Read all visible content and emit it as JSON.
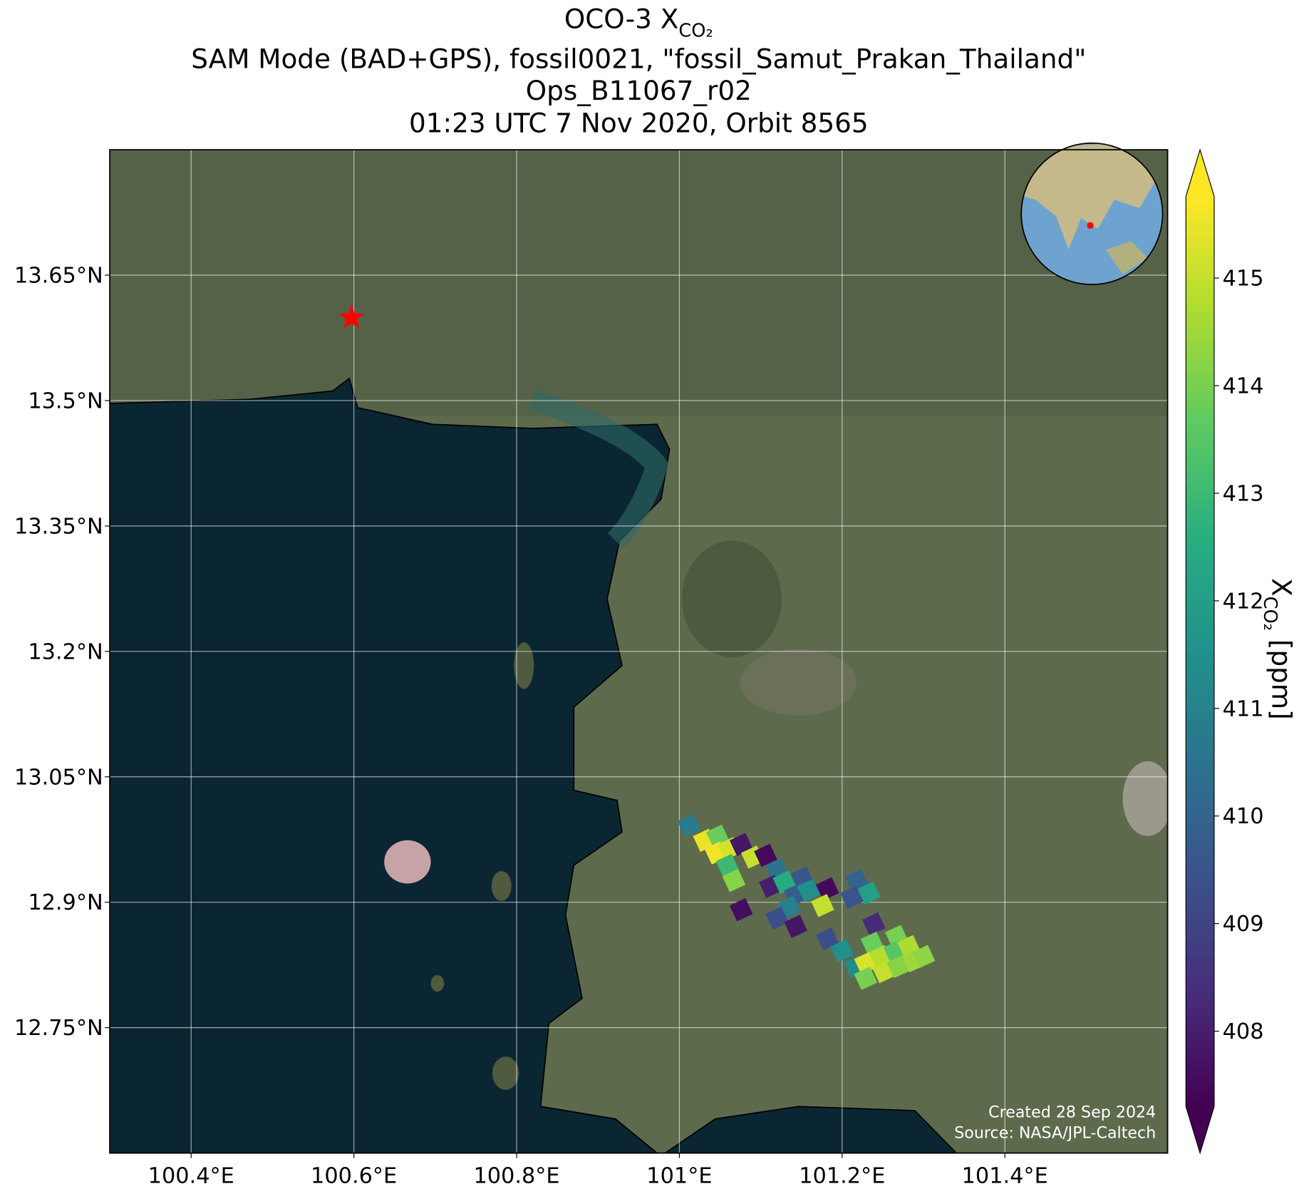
{
  "chart_data": {
    "type": "map",
    "title": {
      "text": "OCO-3 X",
      "subscript": "CO₂"
    },
    "subtitle": [
      "SAM Mode (BAD+GPS), fossil0021, \"fossil_Samut_Prakan_Thailand\"",
      "Ops_B11067_r02",
      "01:23 UTC 7 Nov 2020, Orbit 8565"
    ],
    "xlim": [
      100.3,
      101.6
    ],
    "ylim": [
      12.6,
      13.8
    ],
    "xticks": [
      {
        "value": 100.4,
        "label": "100.4°E"
      },
      {
        "value": 100.6,
        "label": "100.6°E"
      },
      {
        "value": 100.8,
        "label": "100.8°E"
      },
      {
        "value": 101,
        "label": "101°E"
      },
      {
        "value": 101.2,
        "label": "101.2°E"
      },
      {
        "value": 101.4,
        "label": "101.4°E"
      }
    ],
    "yticks": [
      {
        "value": 13.65,
        "label": "13.65°N"
      },
      {
        "value": 13.5,
        "label": "13.5°N"
      },
      {
        "value": 13.35,
        "label": "13.35°N"
      },
      {
        "value": 13.2,
        "label": "13.2°N"
      },
      {
        "value": 13.05,
        "label": "13.05°N"
      },
      {
        "value": 12.9,
        "label": "12.9°N"
      },
      {
        "value": 12.75,
        "label": "12.75°N"
      }
    ],
    "grid": true,
    "target": {
      "lon": 100.597,
      "lat": 13.599,
      "color": "#ff0000"
    },
    "lon": [
      101.012,
      101.031,
      101.047,
      101.045,
      101.061,
      101.076,
      101.059,
      101.09,
      101.106,
      101.067,
      101.12,
      101.112,
      101.129,
      101.151,
      101.143,
      101.159,
      101.182,
      101.176,
      101.135,
      101.12,
      101.076,
      101.143,
      101.218,
      101.233,
      101.212,
      101.239,
      101.182,
      101.2,
      101.237,
      101.267,
      101.216,
      101.229,
      101.247,
      101.265,
      101.282,
      101.229,
      101.251,
      101.269,
      101.288,
      101.3
    ],
    "lat": [
      12.992,
      12.974,
      12.979,
      12.959,
      12.964,
      12.969,
      12.944,
      12.954,
      12.956,
      12.926,
      12.939,
      12.919,
      12.924,
      12.929,
      12.909,
      12.914,
      12.916,
      12.896,
      12.894,
      12.881,
      12.891,
      12.871,
      12.926,
      12.911,
      12.906,
      12.874,
      12.856,
      12.842,
      12.851,
      12.859,
      12.823,
      12.827,
      12.835,
      12.841,
      12.847,
      12.809,
      12.817,
      12.823,
      12.83,
      12.835
    ],
    "values": [
      410.8,
      415.5,
      413.8,
      415.6,
      415.2,
      407.8,
      413.0,
      415.0,
      407.5,
      414.2,
      410.5,
      408.0,
      412.5,
      409.5,
      409.8,
      411.5,
      407.5,
      415.0,
      411.0,
      409.3,
      407.6,
      407.8,
      410.0,
      412.0,
      409.5,
      408.3,
      409.3,
      411.5,
      413.8,
      414.0,
      411.3,
      415.3,
      414.8,
      413.5,
      414.7,
      414.0,
      415.0,
      414.2,
      414.5,
      414.3
    ],
    "colorbar": {
      "label": "X",
      "label_subscript": "CO₂",
      "label_unit": " [ppm]",
      "clim": [
        407.3,
        415.76
      ],
      "ticks": [
        408,
        409,
        410,
        411,
        412,
        413,
        414,
        415
      ],
      "colormap": "viridis"
    },
    "credits": [
      "Created 28 Sep 2024",
      "Source: NASA/JPL-Caltech"
    ]
  }
}
